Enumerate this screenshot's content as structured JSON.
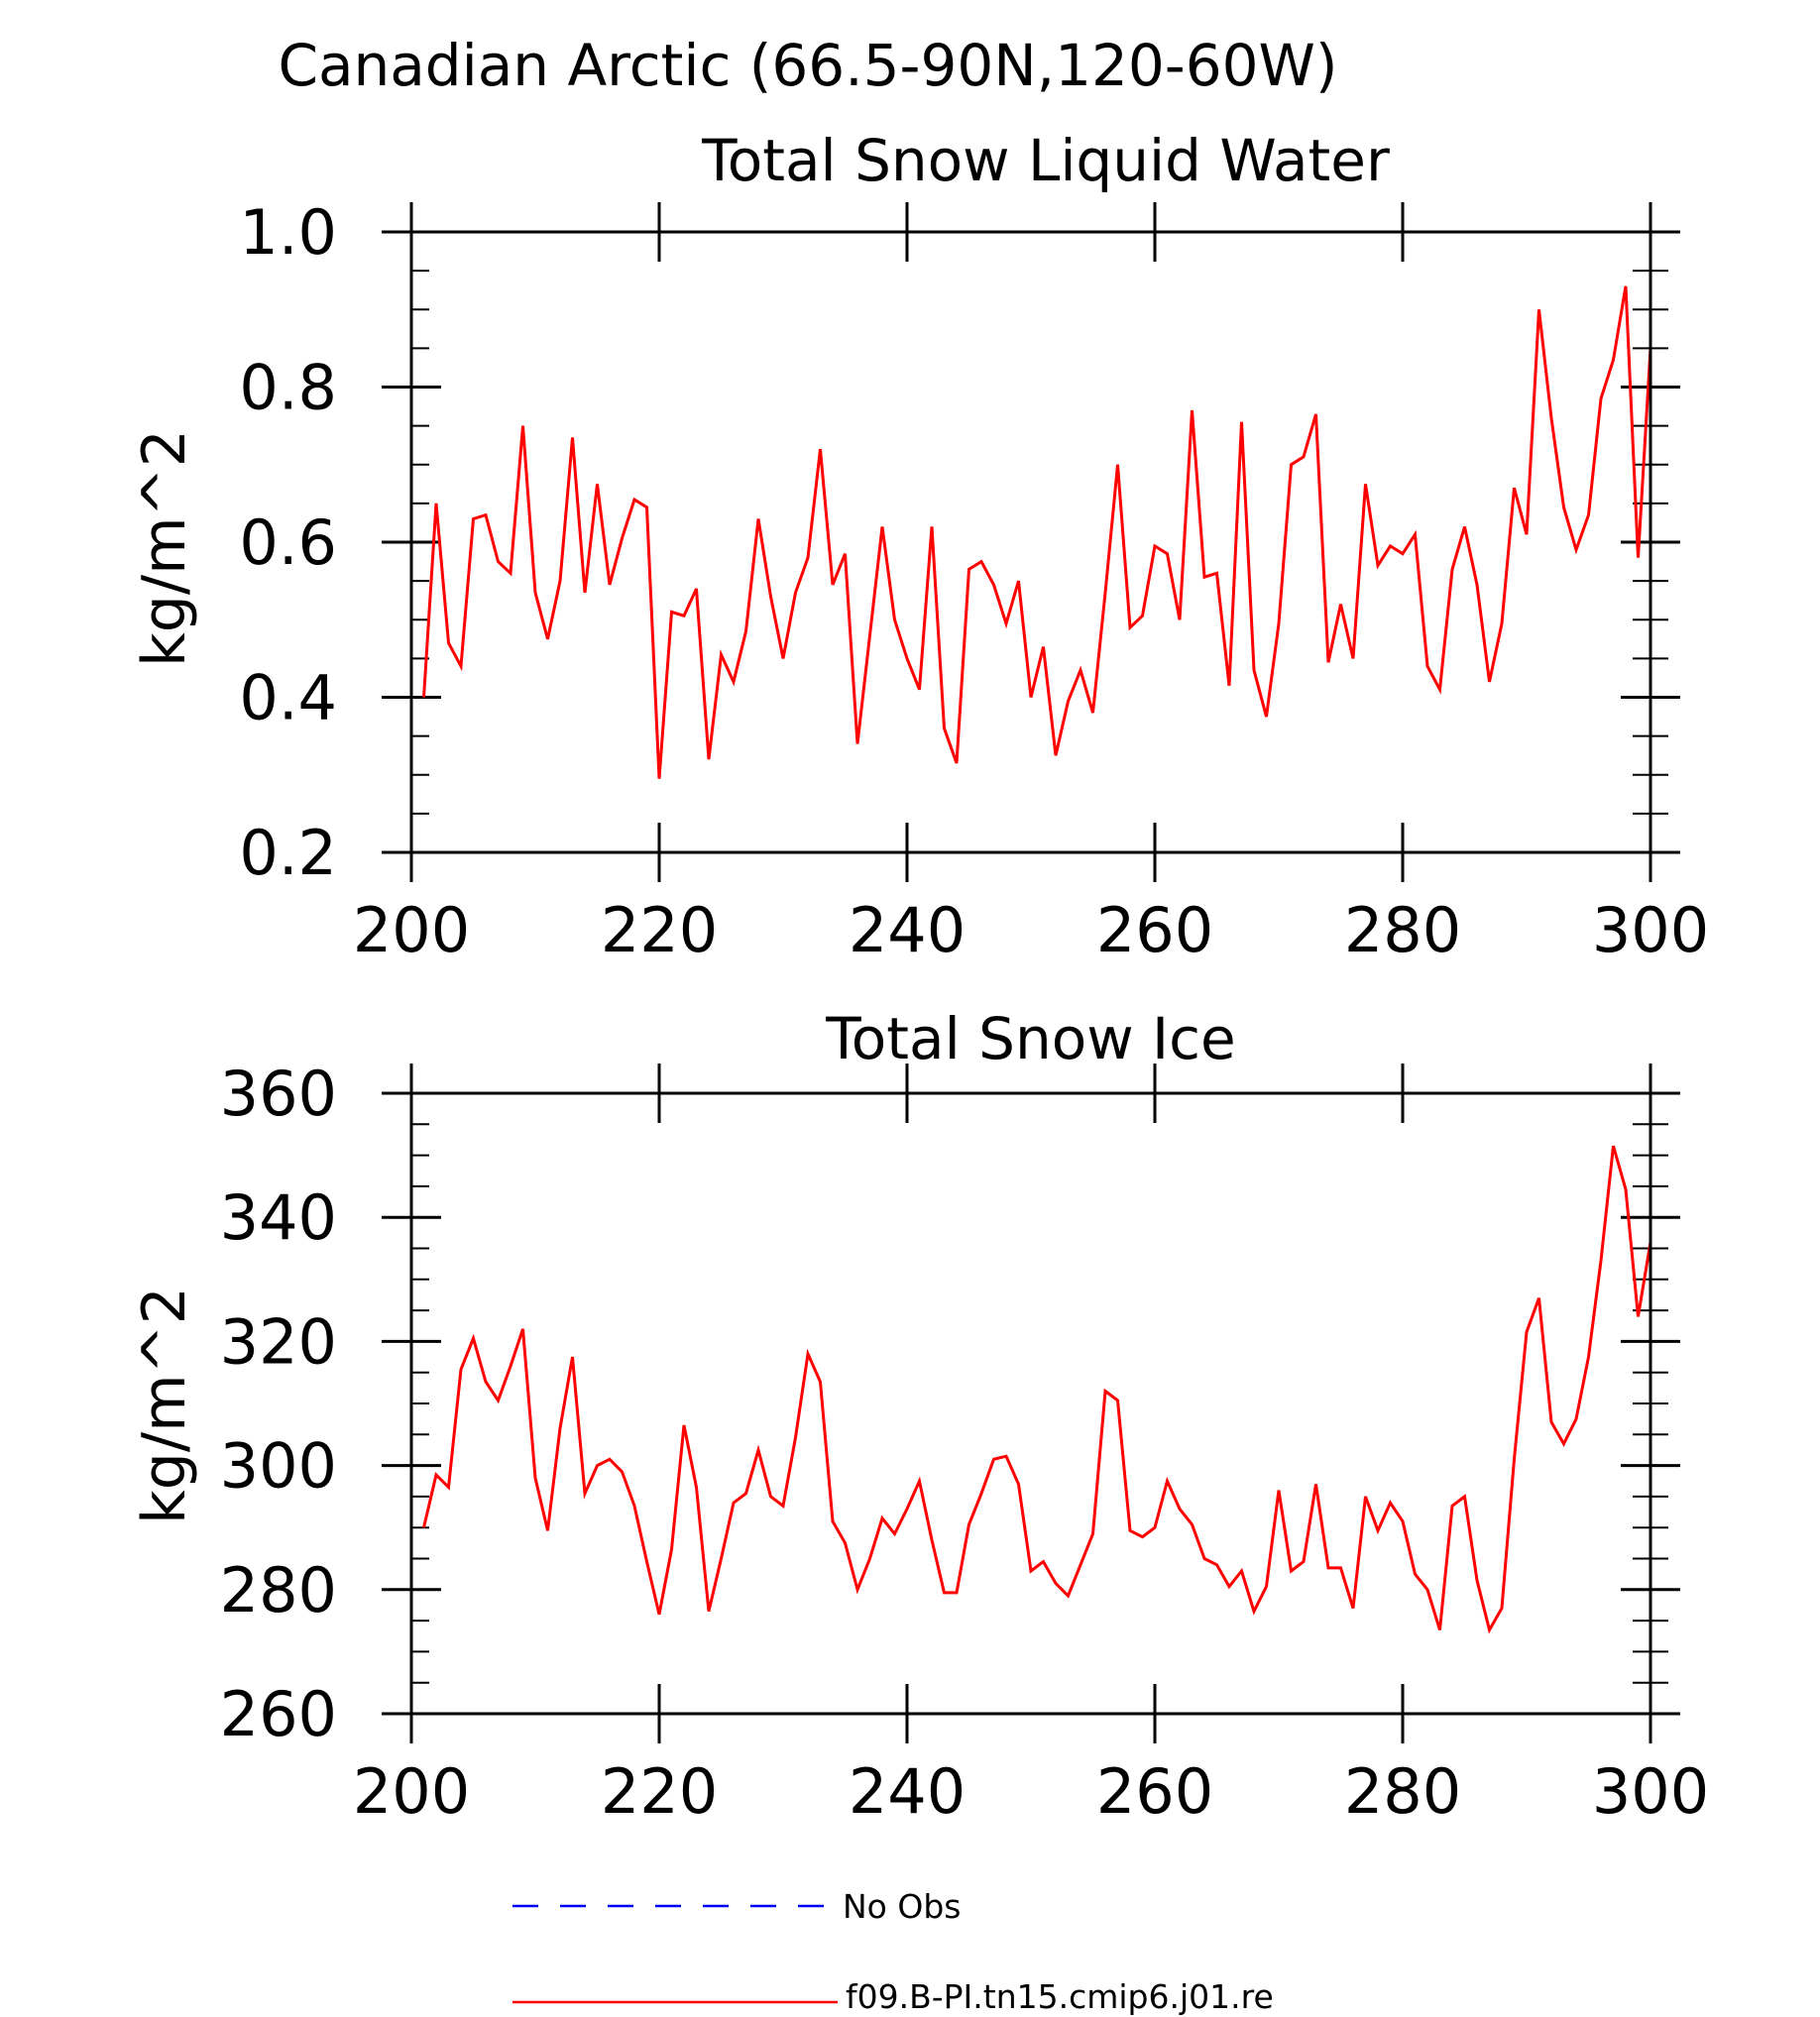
{
  "main_title": "Canadian Arctic (66.5-90N,120-60W)",
  "chart_data": [
    {
      "type": "line",
      "title": "Total Snow Liquid Water",
      "xlabel": "",
      "ylabel": "kg/m^2",
      "xlim": [
        200,
        300
      ],
      "ylim": [
        0.2,
        1.0
      ],
      "xticks": [
        200,
        220,
        240,
        260,
        280,
        300
      ],
      "yticks": [
        0.2,
        0.4,
        0.6,
        0.8,
        1.0
      ],
      "ytick_labels": [
        "0.2",
        "0.4",
        "0.6",
        "0.8",
        "1.0"
      ],
      "x": [
        201,
        202,
        203,
        204,
        205,
        206,
        207,
        208,
        209,
        210,
        211,
        212,
        213,
        214,
        215,
        216,
        217,
        218,
        219,
        220,
        221,
        222,
        223,
        224,
        225,
        226,
        227,
        228,
        229,
        230,
        231,
        232,
        233,
        234,
        235,
        236,
        237,
        238,
        239,
        240,
        241,
        242,
        243,
        244,
        245,
        246,
        247,
        248,
        249,
        250,
        251,
        252,
        253,
        254,
        255,
        256,
        257,
        258,
        259,
        260,
        261,
        262,
        263,
        264,
        265,
        266,
        267,
        268,
        269,
        270,
        271,
        272,
        273,
        274,
        275,
        276,
        277,
        278,
        279,
        280,
        281,
        282,
        283,
        284,
        285,
        286,
        287,
        288,
        289,
        290,
        291,
        292,
        293,
        294,
        295,
        296,
        297,
        298,
        299,
        300
      ],
      "series": [
        {
          "name": "f09.B-PI.tn15.cmip6.j01.re",
          "color": "#ff0000",
          "values": [
            0.4,
            0.65,
            0.47,
            0.44,
            0.63,
            0.635,
            0.575,
            0.56,
            0.75,
            0.535,
            0.475,
            0.55,
            0.735,
            0.535,
            0.675,
            0.545,
            0.605,
            0.655,
            0.645,
            0.295,
            0.51,
            0.505,
            0.54,
            0.32,
            0.455,
            0.42,
            0.485,
            0.63,
            0.53,
            0.45,
            0.535,
            0.58,
            0.72,
            0.545,
            0.585,
            0.34,
            0.48,
            0.62,
            0.5,
            0.45,
            0.41,
            0.62,
            0.36,
            0.315,
            0.565,
            0.575,
            0.545,
            0.495,
            0.55,
            0.4,
            0.465,
            0.325,
            0.395,
            0.435,
            0.38,
            0.535,
            0.7,
            0.49,
            0.505,
            0.595,
            0.585,
            0.5,
            0.77,
            0.555,
            0.56,
            0.415,
            0.755,
            0.435,
            0.375,
            0.495,
            0.7,
            0.71,
            0.765,
            0.445,
            0.52,
            0.45,
            0.675,
            0.57,
            0.595,
            0.585,
            0.61,
            0.44,
            0.41,
            0.565,
            0.62,
            0.545,
            0.42,
            0.495,
            0.67,
            0.61,
            0.9,
            0.76,
            0.645,
            0.59,
            0.635,
            0.785,
            0.835,
            0.93,
            0.58,
            0.85
          ]
        }
      ]
    },
    {
      "type": "line",
      "title": "Total Snow Ice",
      "xlabel": "",
      "ylabel": "kg/m^2",
      "xlim": [
        200,
        300
      ],
      "ylim": [
        260,
        360
      ],
      "xticks": [
        200,
        220,
        240,
        260,
        280,
        300
      ],
      "yticks": [
        260,
        280,
        300,
        320,
        340,
        360
      ],
      "ytick_labels": [
        "260",
        "280",
        "300",
        "320",
        "340",
        "360"
      ],
      "x": [
        201,
        202,
        203,
        204,
        205,
        206,
        207,
        208,
        209,
        210,
        211,
        212,
        213,
        214,
        215,
        216,
        217,
        218,
        219,
        220,
        221,
        222,
        223,
        224,
        225,
        226,
        227,
        228,
        229,
        230,
        231,
        232,
        233,
        234,
        235,
        236,
        237,
        238,
        239,
        240,
        241,
        242,
        243,
        244,
        245,
        246,
        247,
        248,
        249,
        250,
        251,
        252,
        253,
        254,
        255,
        256,
        257,
        258,
        259,
        260,
        261,
        262,
        263,
        264,
        265,
        266,
        267,
        268,
        269,
        270,
        271,
        272,
        273,
        274,
        275,
        276,
        277,
        278,
        279,
        280,
        281,
        282,
        283,
        284,
        285,
        286,
        287,
        288,
        289,
        290,
        291,
        292,
        293,
        294,
        295,
        296,
        297,
        298,
        299,
        300
      ],
      "series": [
        {
          "name": "f09.B-PI.tn15.cmip6.j01.re",
          "color": "#ff0000",
          "values": [
            290,
            298.5,
            296.5,
            315.5,
            320.5,
            313.5,
            310.5,
            316,
            322,
            298,
            289.5,
            306,
            317.5,
            295.5,
            300,
            301,
            299,
            293.5,
            284.5,
            276,
            286.5,
            306.5,
            296.5,
            276.5,
            285,
            294,
            295.5,
            302.5,
            295,
            293.5,
            304.5,
            318,
            313.5,
            291,
            287.5,
            280,
            285,
            291.5,
            289,
            293,
            297.5,
            288,
            279.5,
            279.5,
            290.5,
            295.5,
            301,
            301.5,
            297,
            283,
            284.5,
            281,
            279,
            284,
            289,
            312,
            310.5,
            289.5,
            288.5,
            290,
            297.5,
            293,
            290.5,
            285,
            284,
            280.5,
            283,
            276.5,
            280.5,
            296,
            283,
            284.5,
            297,
            283.5,
            283.5,
            277,
            295,
            289.5,
            294,
            291,
            282.5,
            280,
            273.5,
            293.5,
            295,
            281.5,
            273.5,
            277,
            301,
            321.5,
            327,
            307,
            303.5,
            307.5,
            317.5,
            333,
            351.5,
            344.5,
            324,
            336
          ]
        }
      ]
    }
  ],
  "legend": [
    {
      "label": "No Obs",
      "color": "#0000ff",
      "style": "dashed"
    },
    {
      "label": "f09.B-PI.tn15.cmip6.j01.re",
      "color": "#ff0000",
      "style": "solid"
    }
  ]
}
